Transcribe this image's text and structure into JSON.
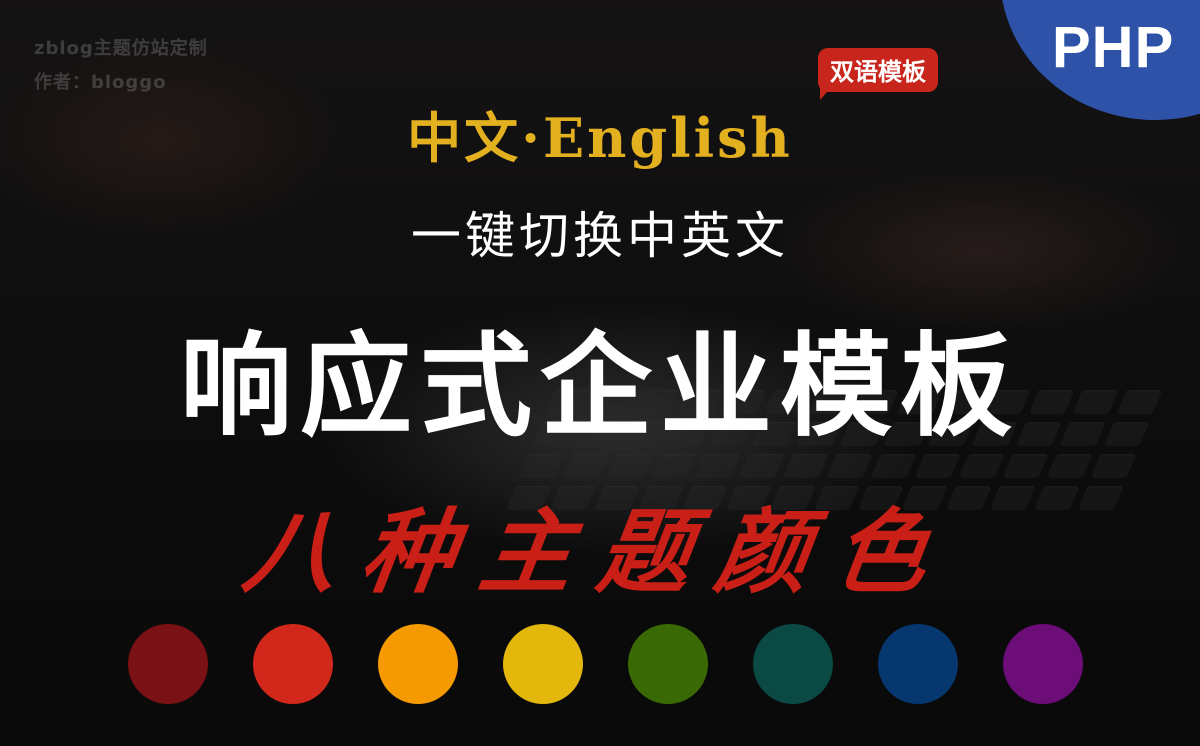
{
  "watermark": {
    "line1": "zblog主题仿站定制",
    "line2": "作者：bloggo"
  },
  "corner": {
    "label": "PHP",
    "color": "#2d52a7"
  },
  "badge": {
    "label": "双语模板",
    "color": "#c8261c"
  },
  "headline": {
    "languages": "中文·English",
    "switch": "一键切换中英文",
    "title": "响应式企业模板",
    "colors": "八种主题颜色"
  },
  "theme_colors": [
    {
      "name": "dark-red",
      "hex": "#7a1114"
    },
    {
      "name": "red",
      "hex": "#d2281b"
    },
    {
      "name": "orange",
      "hex": "#f59a00"
    },
    {
      "name": "yellow",
      "hex": "#e3b70c"
    },
    {
      "name": "green",
      "hex": "#3a6a05"
    },
    {
      "name": "teal",
      "hex": "#0b4a44"
    },
    {
      "name": "navy",
      "hex": "#06376f"
    },
    {
      "name": "purple",
      "hex": "#6c0d78"
    }
  ]
}
